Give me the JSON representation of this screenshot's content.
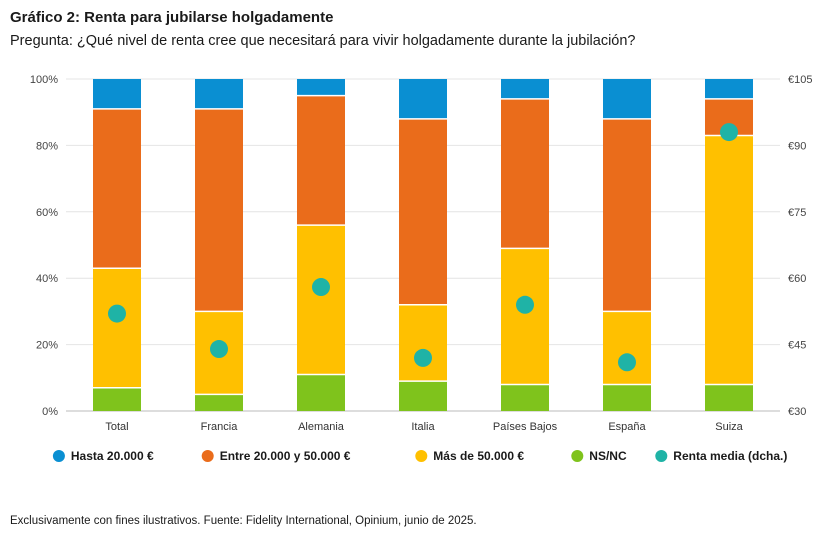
{
  "header": {
    "title": "Gráfico 2: Renta para jubilarse holgadamente",
    "subtitle": "Pregunta: ¿Qué nivel de renta cree que necesitará para vivir holgadamente durante la jubilación?"
  },
  "footer": {
    "note": "Exclusivamente con fines ilustrativos. Fuente: Fidelity International, Opinium, junio de 2025."
  },
  "chart_data": {
    "type": "bar",
    "stacked": true,
    "title": "Gráfico 2: Renta para jubilarse holgadamente",
    "categories": [
      "Total",
      "Francia",
      "Alemania",
      "Italia",
      "Países Bajos",
      "España",
      "Suiza"
    ],
    "series": [
      {
        "name": "NS/NC",
        "color": "#7fc31c",
        "values": [
          7,
          5,
          11,
          9,
          8,
          8,
          8
        ]
      },
      {
        "name": "Más de 50.000 €",
        "color": "#ffc000",
        "values": [
          36,
          25,
          45,
          23,
          41,
          22,
          75
        ]
      },
      {
        "name": "Entre 20.000 y 50.000 €",
        "color": "#ea6c1b",
        "values": [
          48,
          61,
          39,
          56,
          45,
          58,
          11
        ]
      },
      {
        "name": "Hasta 20.000 €",
        "color": "#0a8fd2",
        "values": [
          9,
          9,
          5,
          12,
          6,
          12,
          6
        ]
      }
    ],
    "line_series": {
      "name": "Renta media (dcha.)",
      "color": "#1fb3a6",
      "values": [
        52,
        44,
        58,
        42,
        54,
        41,
        93
      ]
    },
    "left_axis": {
      "ticks": [
        "0%",
        "20%",
        "40%",
        "60%",
        "80%",
        "100%"
      ],
      "range": [
        0,
        100
      ]
    },
    "right_axis": {
      "ticks": [
        "€30",
        "€45",
        "€60",
        "€75",
        "€90",
        "€105"
      ],
      "range": [
        30,
        105
      ]
    },
    "legend": [
      {
        "label": "Hasta 20.000 €",
        "color": "#0a8fd2"
      },
      {
        "label": "Entre 20.000 y 50.000 €",
        "color": "#ea6c1b"
      },
      {
        "label": "Más de 50.000 €",
        "color": "#ffc000"
      },
      {
        "label": "NS/NC",
        "color": "#7fc31c"
      },
      {
        "label": "Renta media (dcha.)",
        "color": "#1fb3a6"
      }
    ],
    "legend_position": "bottom"
  }
}
